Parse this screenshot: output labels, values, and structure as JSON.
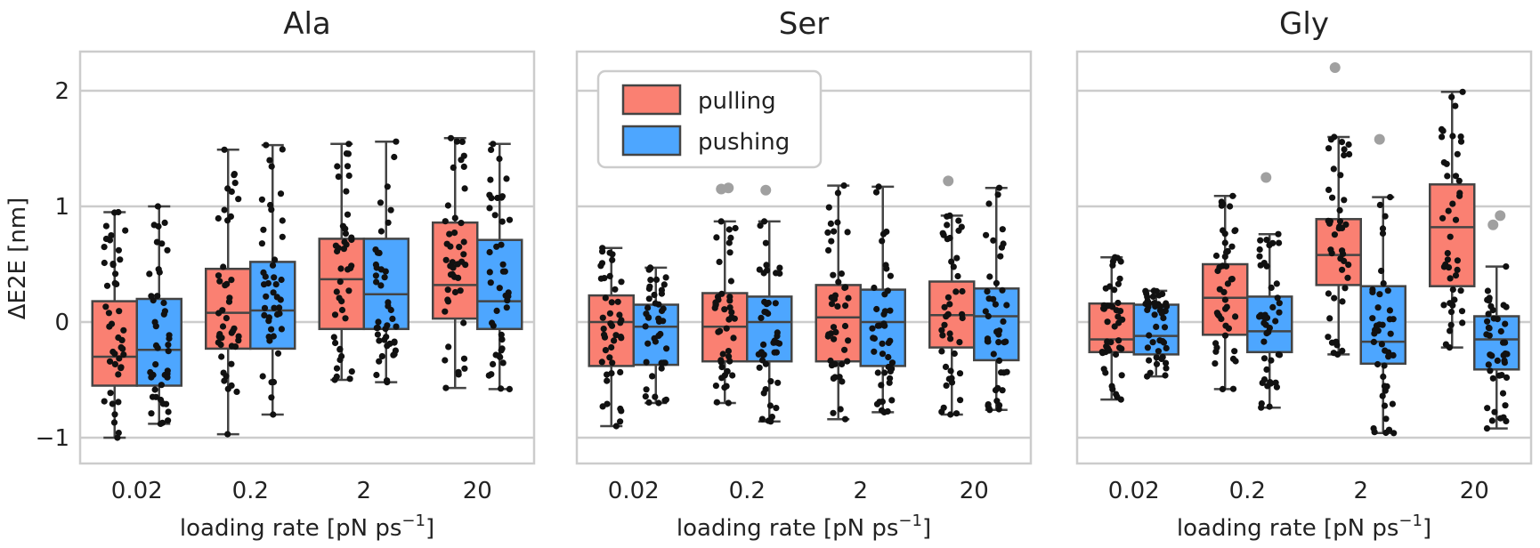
{
  "chart_data": {
    "type": "box",
    "ylabel": "ΔE2E [nm]",
    "ylim": [
      -1.22,
      2.3
    ],
    "yticks": [
      {
        "value": -1,
        "label": "−1"
      },
      {
        "value": 0,
        "label": "0"
      },
      {
        "value": 1,
        "label": "1"
      },
      {
        "value": 2,
        "label": "2"
      }
    ],
    "categories": [
      "0.02",
      "0.2",
      "2",
      "20"
    ],
    "xlabel": {
      "main": "loading rate [pN ps",
      "sup": "−1",
      "end": "]"
    },
    "legend": [
      {
        "name": "pulling",
        "color": "#fa8072"
      },
      {
        "name": "pushing",
        "color": "#4da6ff"
      }
    ],
    "colors": {
      "pulling": "#fa8072",
      "pushing": "#4da6ff",
      "edge": "#444444",
      "points": "#111111",
      "outliers": "#a0a0a0",
      "grid": "#cccccc"
    },
    "panels": [
      {
        "title": "Ala",
        "boxes": [
          {
            "category": "0.02",
            "series": "pulling",
            "whislo": -1.0,
            "q1": -0.55,
            "med": -0.3,
            "q3": 0.18,
            "whishi": 0.95,
            "fliers": []
          },
          {
            "category": "0.02",
            "series": "pushing",
            "whislo": -0.88,
            "q1": -0.55,
            "med": -0.24,
            "q3": 0.2,
            "whishi": 1.0,
            "fliers": []
          },
          {
            "category": "0.2",
            "series": "pulling",
            "whislo": -0.97,
            "q1": -0.23,
            "med": 0.08,
            "q3": 0.46,
            "whishi": 1.49,
            "fliers": []
          },
          {
            "category": "0.2",
            "series": "pushing",
            "whislo": -0.8,
            "q1": -0.23,
            "med": 0.1,
            "q3": 0.52,
            "whishi": 1.53,
            "fliers": []
          },
          {
            "category": "2",
            "series": "pulling",
            "whislo": -0.5,
            "q1": -0.06,
            "med": 0.37,
            "q3": 0.72,
            "whishi": 1.54,
            "fliers": []
          },
          {
            "category": "2",
            "series": "pushing",
            "whislo": -0.52,
            "q1": -0.06,
            "med": 0.24,
            "q3": 0.72,
            "whishi": 1.56,
            "fliers": []
          },
          {
            "category": "20",
            "series": "pulling",
            "whislo": -0.57,
            "q1": 0.03,
            "med": 0.32,
            "q3": 0.86,
            "whishi": 1.59,
            "fliers": []
          },
          {
            "category": "20",
            "series": "pushing",
            "whislo": -0.58,
            "q1": -0.06,
            "med": 0.18,
            "q3": 0.71,
            "whishi": 1.54,
            "fliers": []
          }
        ]
      },
      {
        "title": "Ser",
        "boxes": [
          {
            "category": "0.02",
            "series": "pulling",
            "whislo": -0.9,
            "q1": -0.38,
            "med": 0.0,
            "q3": 0.23,
            "whishi": 0.64,
            "fliers": []
          },
          {
            "category": "0.02",
            "series": "pushing",
            "whislo": -0.7,
            "q1": -0.37,
            "med": -0.04,
            "q3": 0.15,
            "whishi": 0.47,
            "fliers": []
          },
          {
            "category": "0.2",
            "series": "pulling",
            "whislo": -0.7,
            "q1": -0.34,
            "med": -0.04,
            "q3": 0.25,
            "whishi": 0.87,
            "fliers": [
              1.15,
              1.16
            ]
          },
          {
            "category": "0.2",
            "series": "pushing",
            "whislo": -0.86,
            "q1": -0.34,
            "med": 0.0,
            "q3": 0.22,
            "whishi": 0.87,
            "fliers": [
              1.14
            ]
          },
          {
            "category": "2",
            "series": "pulling",
            "whislo": -0.84,
            "q1": -0.34,
            "med": 0.04,
            "q3": 0.32,
            "whishi": 1.18,
            "fliers": []
          },
          {
            "category": "2",
            "series": "pushing",
            "whislo": -0.78,
            "q1": -0.38,
            "med": 0.0,
            "q3": 0.28,
            "whishi": 1.17,
            "fliers": []
          },
          {
            "category": "20",
            "series": "pulling",
            "whislo": -0.8,
            "q1": -0.22,
            "med": 0.06,
            "q3": 0.35,
            "whishi": 0.92,
            "fliers": [
              1.22
            ]
          },
          {
            "category": "20",
            "series": "pushing",
            "whislo": -0.76,
            "q1": -0.33,
            "med": 0.05,
            "q3": 0.29,
            "whishi": 1.16,
            "fliers": []
          }
        ]
      },
      {
        "title": "Gly",
        "boxes": [
          {
            "category": "0.02",
            "series": "pulling",
            "whislo": -0.67,
            "q1": -0.26,
            "med": -0.15,
            "q3": 0.16,
            "whishi": 0.56,
            "fliers": []
          },
          {
            "category": "0.02",
            "series": "pushing",
            "whislo": -0.47,
            "q1": -0.28,
            "med": -0.12,
            "q3": 0.15,
            "whishi": 0.27,
            "fliers": []
          },
          {
            "category": "0.2",
            "series": "pulling",
            "whislo": -0.58,
            "q1": -0.11,
            "med": 0.21,
            "q3": 0.5,
            "whishi": 1.09,
            "fliers": []
          },
          {
            "category": "0.2",
            "series": "pushing",
            "whislo": -0.74,
            "q1": -0.26,
            "med": -0.08,
            "q3": 0.22,
            "whishi": 0.76,
            "fliers": [
              1.25
            ]
          },
          {
            "category": "2",
            "series": "pulling",
            "whislo": -0.28,
            "q1": 0.32,
            "med": 0.58,
            "q3": 0.89,
            "whishi": 1.6,
            "fliers": [
              2.2
            ]
          },
          {
            "category": "2",
            "series": "pushing",
            "whislo": -0.96,
            "q1": -0.36,
            "med": -0.17,
            "q3": 0.31,
            "whishi": 1.08,
            "fliers": [
              1.58
            ]
          },
          {
            "category": "20",
            "series": "pulling",
            "whislo": -0.22,
            "q1": 0.31,
            "med": 0.82,
            "q3": 1.19,
            "whishi": 1.99,
            "fliers": []
          },
          {
            "category": "20",
            "series": "pushing",
            "whislo": -0.92,
            "q1": -0.41,
            "med": -0.15,
            "q3": 0.05,
            "whishi": 0.48,
            "fliers": [
              0.84,
              0.92
            ]
          }
        ]
      }
    ]
  }
}
